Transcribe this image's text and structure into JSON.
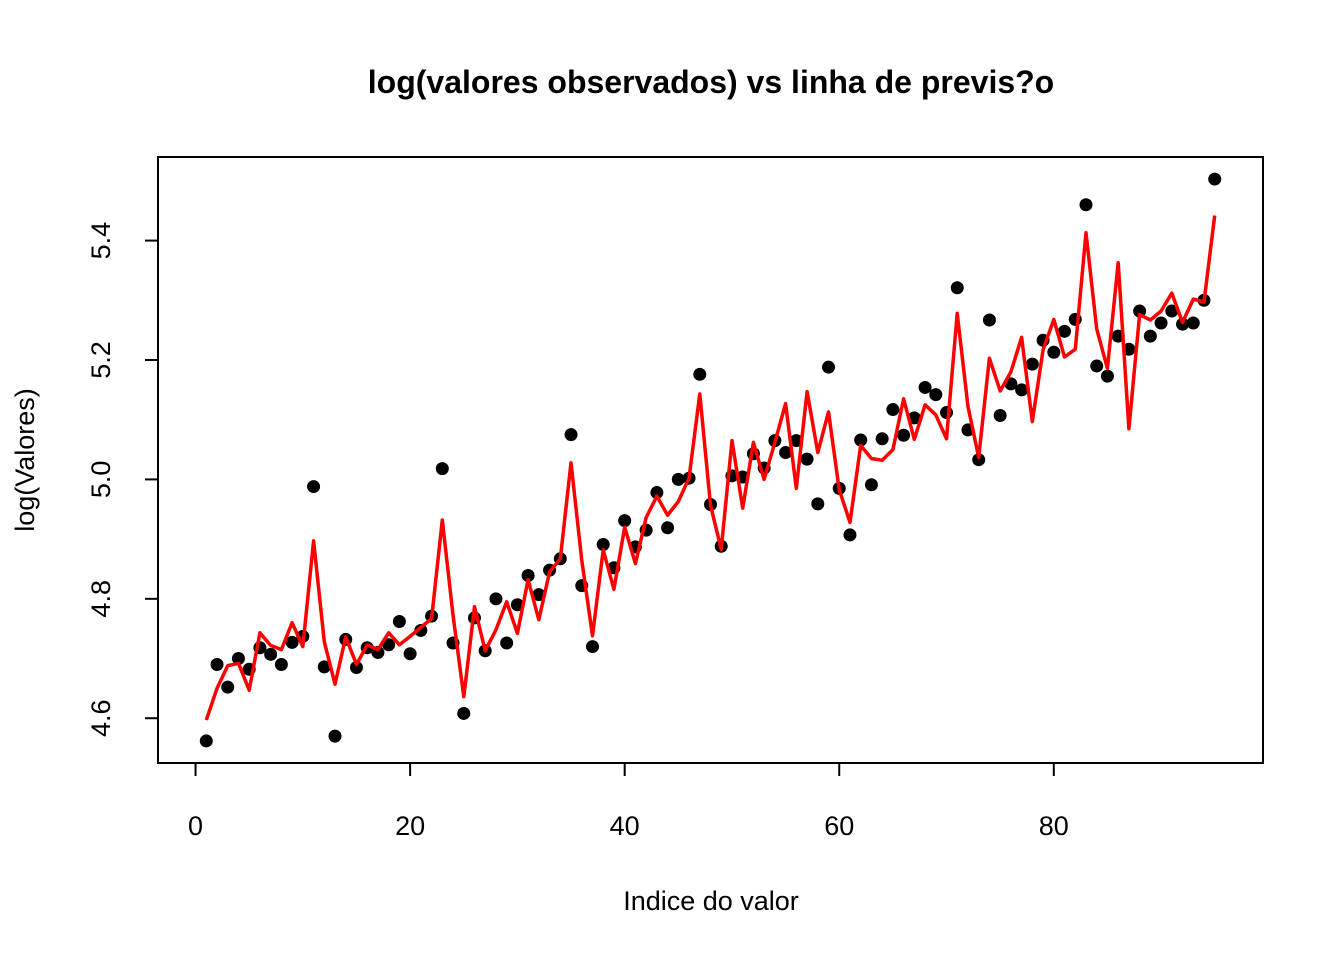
{
  "chart_data": {
    "type": "scatter",
    "title": "log(valores observados) vs linha de previs?o",
    "xlabel": "Indice do valor",
    "ylabel": "log(Valores)",
    "xlim": [
      -3.5,
      99.5
    ],
    "ylim": [
      4.525,
      5.54
    ],
    "xticks": [
      0,
      20,
      40,
      60,
      80
    ],
    "xtick_labels": [
      "0",
      "20",
      "40",
      "60",
      "80"
    ],
    "yticks": [
      4.6,
      4.8,
      5.0,
      5.2,
      5.4
    ],
    "ytick_labels": [
      "4.6",
      "4.8",
      "5.0",
      "5.2",
      "5.4"
    ],
    "grid": false,
    "colors": {
      "points": "#000000",
      "line": "#ff0000",
      "frame": "#000000"
    },
    "series": [
      {
        "kind": "points",
        "x": [
          1,
          2,
          3,
          4,
          5,
          6,
          7,
          8,
          9,
          10,
          11,
          12,
          13,
          14,
          15,
          16,
          17,
          18,
          19,
          20,
          21,
          22,
          23,
          24,
          25,
          26,
          27,
          28,
          29,
          30,
          31,
          32,
          33,
          34,
          35,
          36,
          37,
          38,
          39,
          40,
          41,
          42,
          43,
          44,
          45,
          46,
          47,
          48,
          49,
          50,
          51,
          52,
          53,
          54,
          55,
          56,
          57,
          58,
          59,
          60,
          61,
          62,
          63,
          64,
          65,
          66,
          67,
          68,
          69,
          70,
          71,
          72,
          73,
          74,
          75,
          76,
          77,
          78,
          79,
          80,
          81,
          82,
          83,
          84,
          85,
          86,
          87,
          88,
          89,
          90,
          91,
          92,
          93,
          94,
          95
        ],
        "y": [
          4.562,
          4.69,
          4.652,
          4.7,
          4.682,
          4.718,
          4.707,
          4.69,
          4.727,
          4.737,
          4.988,
          4.686,
          4.57,
          4.732,
          4.685,
          4.718,
          4.71,
          4.723,
          4.762,
          4.708,
          4.747,
          4.771,
          5.018,
          4.726,
          4.608,
          4.768,
          4.713,
          4.8,
          4.726,
          4.79,
          4.839,
          4.807,
          4.848,
          4.867,
          5.075,
          4.822,
          4.72,
          4.891,
          4.852,
          4.931,
          4.887,
          4.915,
          4.978,
          4.919,
          5.0,
          5.002,
          5.176,
          4.958,
          4.888,
          5.006,
          5.004,
          5.043,
          5.019,
          5.065,
          5.045,
          5.065,
          5.034,
          4.959,
          5.188,
          4.985,
          4.907,
          5.066,
          4.991,
          5.068,
          5.117,
          5.074,
          5.103,
          5.154,
          5.142,
          5.112,
          5.321,
          5.083,
          5.033,
          5.267,
          5.107,
          5.16,
          5.15,
          5.193,
          5.233,
          5.213,
          5.248,
          5.268,
          5.46,
          5.19,
          5.173,
          5.24,
          5.218,
          5.282,
          5.24,
          5.262,
          5.282,
          5.26,
          5.262,
          5.3,
          5.503
        ]
      },
      {
        "kind": "line",
        "x": [
          1,
          2,
          3,
          4,
          5,
          6,
          7,
          8,
          9,
          10,
          11,
          12,
          13,
          14,
          15,
          16,
          17,
          18,
          19,
          20,
          21,
          22,
          23,
          24,
          25,
          26,
          27,
          28,
          29,
          30,
          31,
          32,
          33,
          34,
          35,
          36,
          37,
          38,
          39,
          40,
          41,
          42,
          43,
          44,
          45,
          46,
          47,
          48,
          49,
          50,
          51,
          52,
          53,
          54,
          55,
          56,
          57,
          58,
          59,
          60,
          61,
          62,
          63,
          64,
          65,
          66,
          67,
          68,
          69,
          70,
          71,
          72,
          73,
          74,
          75,
          76,
          77,
          78,
          79,
          80,
          81,
          82,
          83,
          84,
          85,
          86,
          87,
          88,
          89,
          90,
          91,
          92,
          93,
          94,
          95
        ],
        "y": [
          4.597,
          4.65,
          4.688,
          4.692,
          4.647,
          4.743,
          4.722,
          4.715,
          4.76,
          4.72,
          4.897,
          4.728,
          4.657,
          4.736,
          4.69,
          4.723,
          4.715,
          4.743,
          4.723,
          4.737,
          4.752,
          4.767,
          4.932,
          4.773,
          4.636,
          4.787,
          4.713,
          4.748,
          4.795,
          4.742,
          4.832,
          4.765,
          4.845,
          4.867,
          5.028,
          4.864,
          4.738,
          4.882,
          4.816,
          4.92,
          4.859,
          4.936,
          4.972,
          4.94,
          4.963,
          5.002,
          5.143,
          4.957,
          4.883,
          5.065,
          4.952,
          5.062,
          5.0,
          5.062,
          5.127,
          4.985,
          5.147,
          5.045,
          5.113,
          4.983,
          4.928,
          5.057,
          5.035,
          5.032,
          5.05,
          5.135,
          5.067,
          5.125,
          5.108,
          5.068,
          5.278,
          5.122,
          5.037,
          5.203,
          5.148,
          5.18,
          5.238,
          5.097,
          5.217,
          5.268,
          5.205,
          5.218,
          5.413,
          5.252,
          5.186,
          5.363,
          5.085,
          5.276,
          5.267,
          5.282,
          5.312,
          5.263,
          5.302,
          5.297,
          5.442
        ]
      }
    ]
  }
}
